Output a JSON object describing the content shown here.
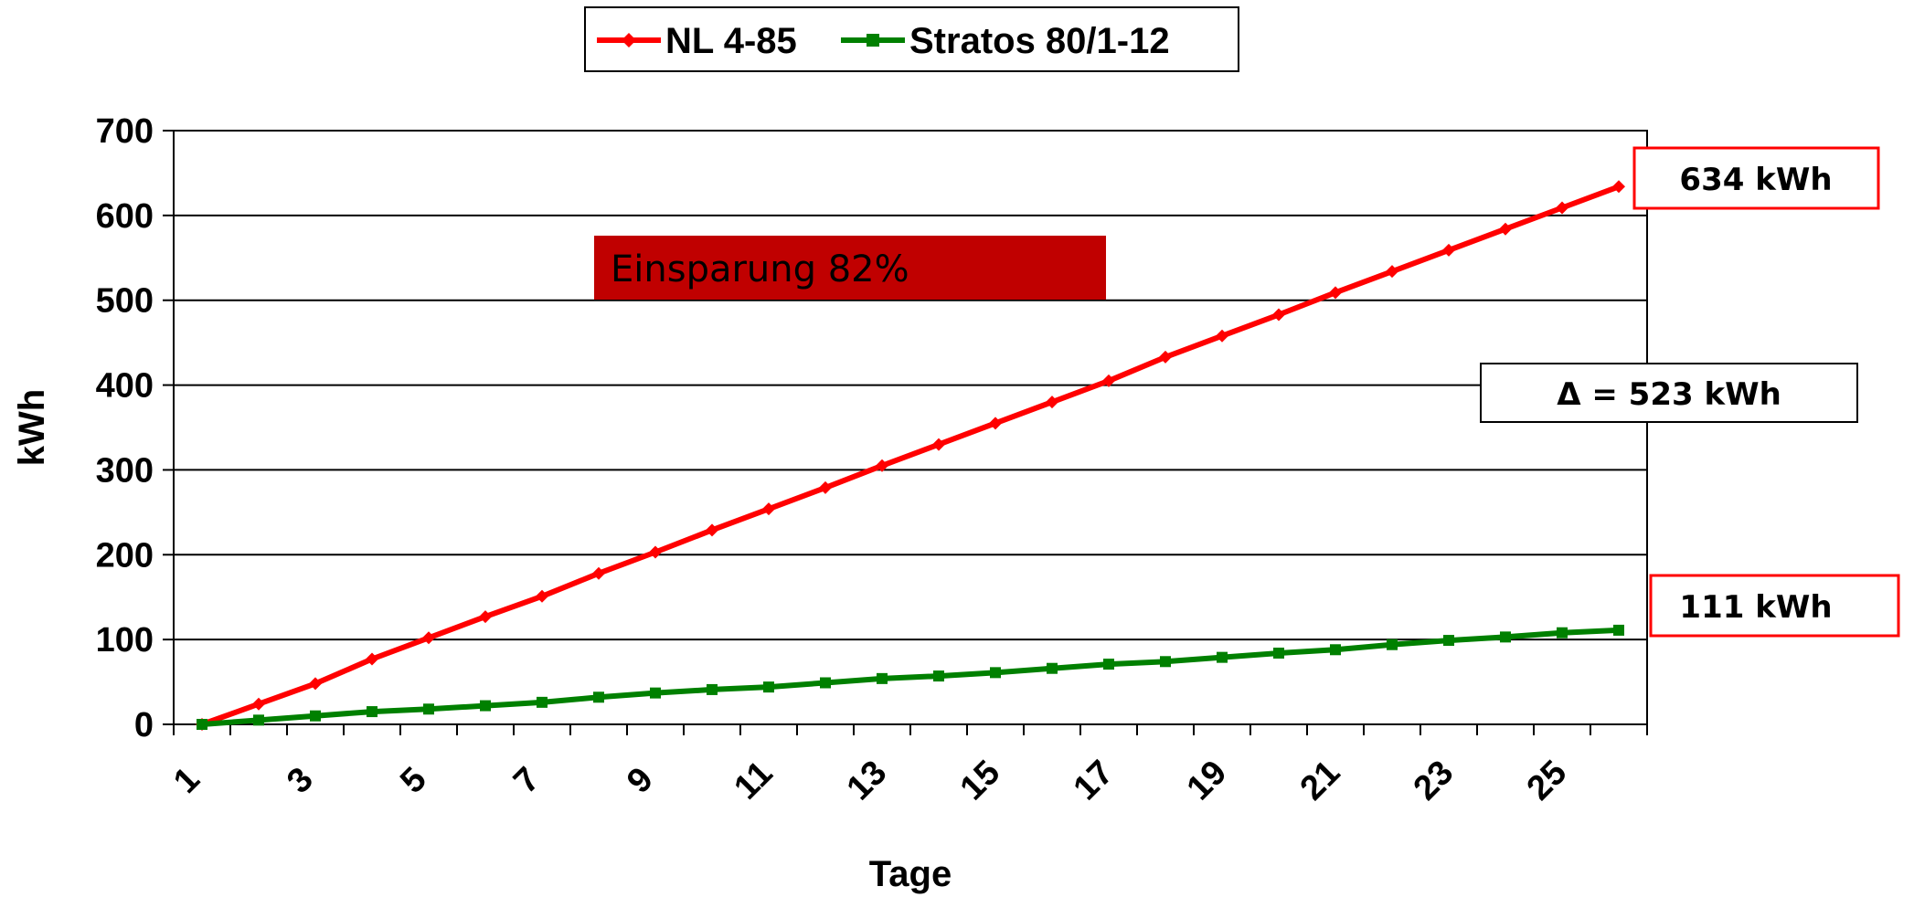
{
  "chart_data": {
    "type": "line",
    "title": "",
    "xlabel": "Tage",
    "ylabel": "kWh",
    "ylim": [
      0,
      700
    ],
    "yticks": [
      0,
      100,
      200,
      300,
      400,
      500,
      600,
      700
    ],
    "x_tick_labels": [
      "1",
      "3",
      "5",
      "7",
      "9",
      "11",
      "13",
      "15",
      "17",
      "19",
      "21",
      "23",
      "25"
    ],
    "grid": "horizontal",
    "legend_position": "top-center",
    "x": [
      1,
      2,
      3,
      4,
      5,
      6,
      7,
      8,
      9,
      10,
      11,
      12,
      13,
      14,
      15,
      16,
      17,
      18,
      19,
      20,
      21,
      22,
      23,
      24,
      25,
      26
    ],
    "series": [
      {
        "name": "NL 4-85",
        "color": "#ff0000",
        "marker": "diamond",
        "values": [
          0,
          24,
          48,
          77,
          102,
          127,
          151,
          178,
          203,
          229,
          254,
          279,
          305,
          330,
          355,
          380,
          405,
          433,
          458,
          483,
          509,
          534,
          559,
          584,
          609,
          634
        ]
      },
      {
        "name": "Stratos 80/1-12",
        "color": "#008000",
        "marker": "square",
        "values": [
          0,
          5,
          10,
          15,
          18,
          22,
          26,
          32,
          37,
          41,
          44,
          49,
          54,
          57,
          61,
          66,
          71,
          74,
          79,
          84,
          88,
          94,
          99,
          103,
          108,
          111
        ]
      }
    ],
    "annotations": {
      "savings": "Einsparung 82%",
      "savings_color": "#c00000",
      "delta": "Δ = 523 kWh",
      "end_red": "634 kWh",
      "end_green": "111 kWh",
      "end_box_border": "#ff0000"
    }
  }
}
